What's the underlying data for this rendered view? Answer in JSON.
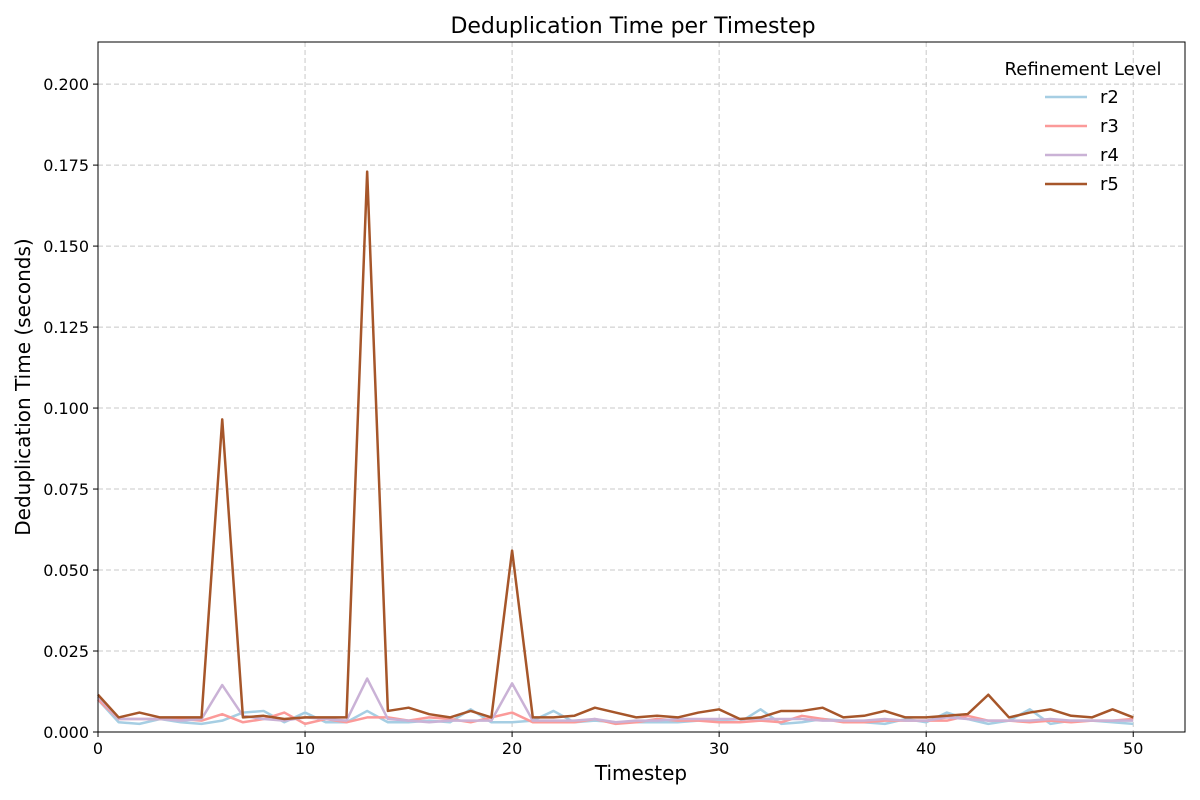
{
  "chart_data": {
    "type": "line",
    "title": "Deduplication Time per Timestep",
    "xlabel": "Timestep",
    "ylabel": "Deduplication Time (seconds)",
    "xlim": [
      0,
      52.5
    ],
    "ylim": [
      0,
      0.213
    ],
    "xticks": [
      0,
      10,
      20,
      30,
      40,
      50
    ],
    "yticks": [
      0.0,
      0.025,
      0.05,
      0.075,
      0.1,
      0.125,
      0.15,
      0.175,
      0.2
    ],
    "grid": true,
    "legend": {
      "title": "Refinement Level",
      "placement": "top-right"
    },
    "x": [
      0,
      1,
      2,
      3,
      4,
      5,
      6,
      7,
      8,
      9,
      10,
      11,
      12,
      13,
      14,
      15,
      16,
      17,
      18,
      19,
      20,
      21,
      22,
      23,
      24,
      25,
      26,
      27,
      28,
      29,
      30,
      31,
      32,
      33,
      34,
      35,
      36,
      37,
      38,
      39,
      40,
      41,
      42,
      43,
      44,
      45,
      46,
      47,
      48,
      49,
      50
    ],
    "series": [
      {
        "name": "r2",
        "color": "#a6cee3",
        "values": [
          0.01,
          0.003,
          0.0025,
          0.004,
          0.003,
          0.0025,
          0.0035,
          0.006,
          0.0065,
          0.003,
          0.006,
          0.003,
          0.003,
          0.0065,
          0.003,
          0.003,
          0.0035,
          0.003,
          0.007,
          0.003,
          0.003,
          0.0035,
          0.0065,
          0.003,
          0.0035,
          0.003,
          0.003,
          0.003,
          0.003,
          0.0035,
          0.0035,
          0.003,
          0.007,
          0.0025,
          0.003,
          0.004,
          0.0035,
          0.003,
          0.0025,
          0.004,
          0.003,
          0.006,
          0.004,
          0.0025,
          0.0035,
          0.007,
          0.0025,
          0.0035,
          0.0035,
          0.003,
          0.0025
        ]
      },
      {
        "name": "r3",
        "color": "#fb9a99",
        "values": [
          0.01,
          0.004,
          0.004,
          0.004,
          0.004,
          0.0035,
          0.0055,
          0.003,
          0.004,
          0.006,
          0.0025,
          0.004,
          0.003,
          0.0045,
          0.0045,
          0.0035,
          0.0045,
          0.004,
          0.003,
          0.0045,
          0.006,
          0.003,
          0.003,
          0.003,
          0.004,
          0.0025,
          0.003,
          0.004,
          0.0035,
          0.0035,
          0.003,
          0.003,
          0.0035,
          0.003,
          0.005,
          0.004,
          0.003,
          0.003,
          0.0035,
          0.0035,
          0.0035,
          0.0035,
          0.005,
          0.0035,
          0.0035,
          0.003,
          0.0035,
          0.003,
          0.0035,
          0.0035,
          0.004
        ]
      },
      {
        "name": "r4",
        "color": "#cab2d6",
        "values": [
          0.011,
          0.004,
          0.004,
          0.004,
          0.0035,
          0.004,
          0.0145,
          0.005,
          0.004,
          0.0035,
          0.0045,
          0.004,
          0.0035,
          0.0165,
          0.004,
          0.0035,
          0.003,
          0.0035,
          0.0035,
          0.0035,
          0.015,
          0.0035,
          0.0035,
          0.0035,
          0.004,
          0.003,
          0.0035,
          0.0035,
          0.004,
          0.004,
          0.004,
          0.004,
          0.004,
          0.004,
          0.004,
          0.0035,
          0.0035,
          0.0035,
          0.004,
          0.0035,
          0.0035,
          0.0045,
          0.004,
          0.0035,
          0.0035,
          0.0035,
          0.004,
          0.0035,
          0.0035,
          0.0035,
          0.0035
        ]
      },
      {
        "name": "r5",
        "color": "#a6562a",
        "values": [
          0.0115,
          0.0045,
          0.006,
          0.0045,
          0.0045,
          0.0045,
          0.0965,
          0.0045,
          0.005,
          0.004,
          0.0045,
          0.0045,
          0.0045,
          0.173,
          0.0065,
          0.0075,
          0.0055,
          0.0045,
          0.0065,
          0.0045,
          0.056,
          0.0045,
          0.0045,
          0.005,
          0.0075,
          0.006,
          0.0045,
          0.005,
          0.0045,
          0.006,
          0.007,
          0.004,
          0.0045,
          0.0065,
          0.0065,
          0.0075,
          0.0045,
          0.005,
          0.0065,
          0.0045,
          0.0045,
          0.005,
          0.0055,
          0.0115,
          0.0045,
          0.006,
          0.007,
          0.005,
          0.0045,
          0.007,
          0.0045
        ]
      }
    ]
  }
}
